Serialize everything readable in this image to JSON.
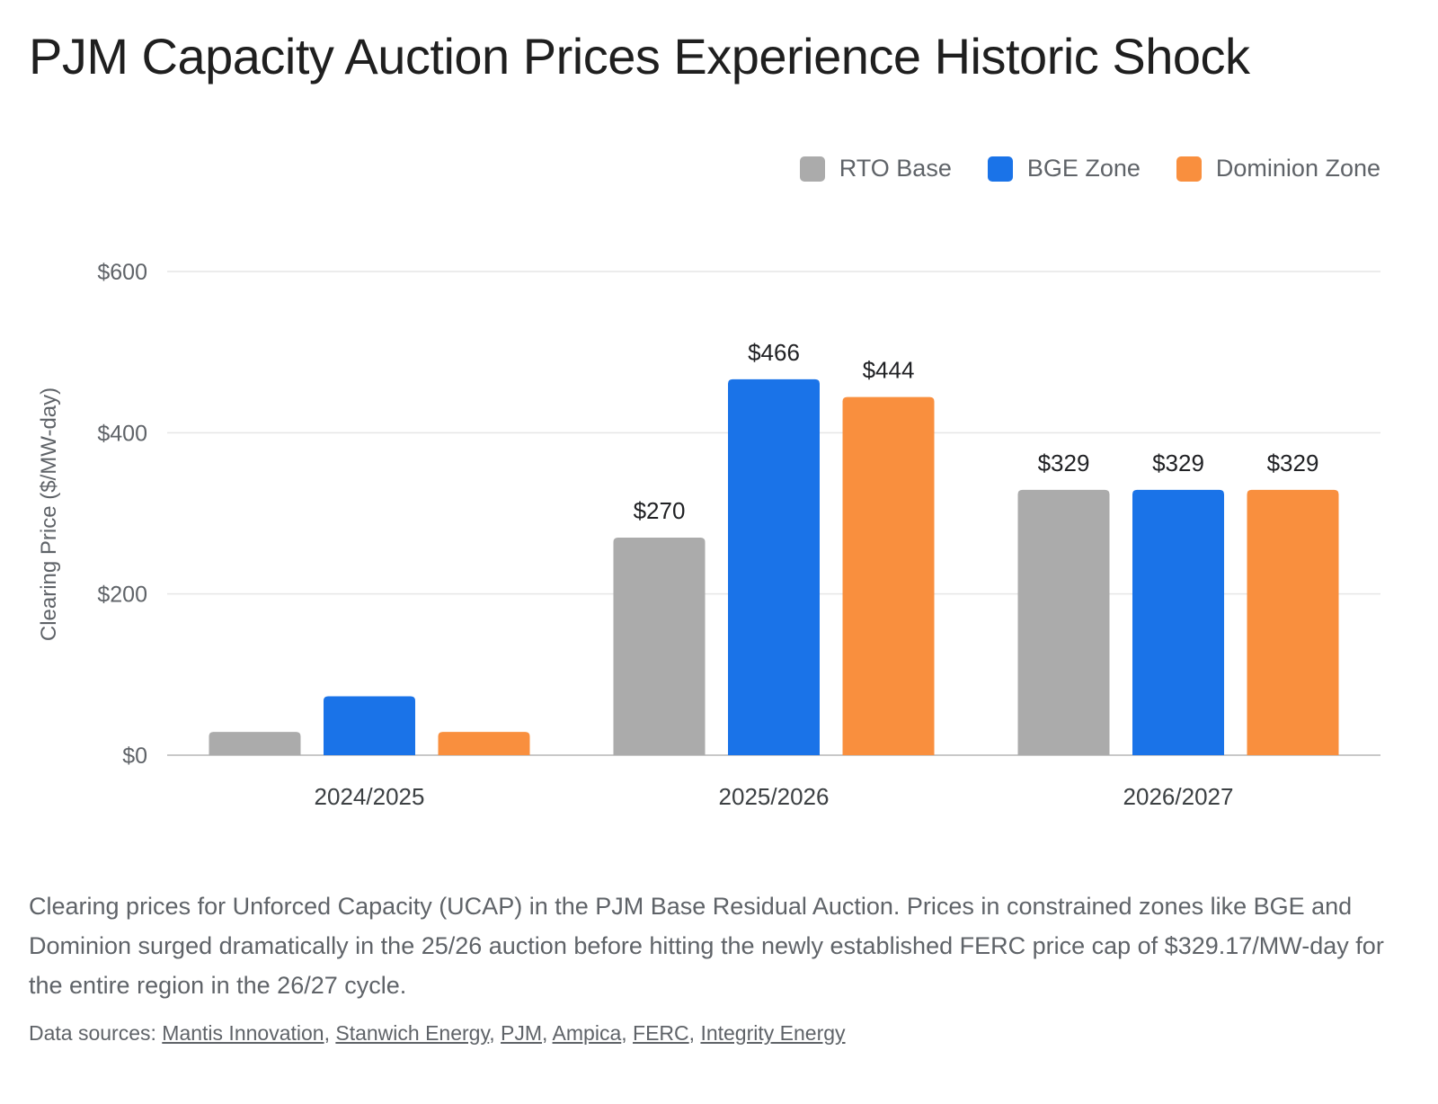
{
  "title": "PJM Capacity Auction Prices Experience Historic Shock",
  "legend": [
    {
      "label": "RTO Base",
      "color": "#ababab"
    },
    {
      "label": "BGE Zone",
      "color": "#1a73e8"
    },
    {
      "label": "Dominion Zone",
      "color": "#f98f3e"
    }
  ],
  "chart_data": {
    "type": "bar",
    "categories": [
      "2024/2025",
      "2025/2026",
      "2026/2027"
    ],
    "series": [
      {
        "name": "RTO Base",
        "color": "#ababab",
        "values": [
          28.92,
          269.92,
          329.17
        ],
        "labels": [
          "",
          "$270",
          "$329"
        ]
      },
      {
        "name": "BGE Zone",
        "color": "#1a73e8",
        "values": [
          73,
          466.35,
          329.17
        ],
        "labels": [
          "",
          "$466",
          "$329"
        ]
      },
      {
        "name": "Dominion Zone",
        "color": "#f98f3e",
        "values": [
          28.92,
          444.26,
          329.17
        ],
        "labels": [
          "",
          "$444",
          "$329"
        ]
      }
    ],
    "ylabel": "Clearing Price ($/MW-day)",
    "xlabel": "",
    "ylim": [
      0,
      600
    ],
    "yticks": [
      0,
      200,
      400,
      600
    ],
    "ytick_labels": [
      "$0",
      "$200",
      "$400",
      "$600"
    ],
    "grid": true,
    "legend_position": "top-right"
  },
  "caption": "Clearing prices for Unforced Capacity (UCAP) in the PJM Base Residual Auction. Prices in constrained zones like BGE and Dominion surged dramatically in the 25/26 auction before hitting the newly established FERC price cap of $329.17/MW-day for the entire region in the 26/27 cycle.",
  "sources": {
    "prefix": "Data sources: ",
    "links": [
      "Mantis Innovation",
      "Stanwich Energy",
      "PJM",
      "Ampica",
      "FERC",
      "Integrity Energy"
    ]
  }
}
